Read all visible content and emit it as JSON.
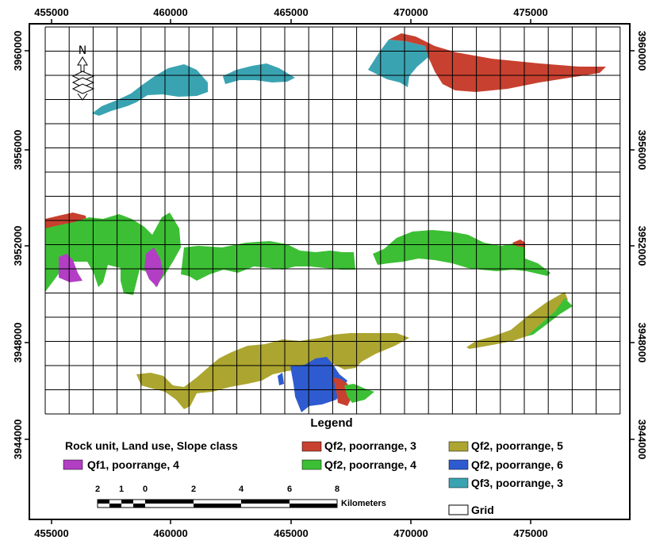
{
  "map": {
    "x_ticks": [
      "455000",
      "460000",
      "465000",
      "470000",
      "475000"
    ],
    "y_ticks": [
      "3960000",
      "3956000",
      "3952000",
      "3948000",
      "3944000"
    ],
    "north_label": "N"
  },
  "legend": {
    "title": "Legend",
    "header": "Rock unit, Land use, Slope class",
    "items": [
      {
        "label": "Qf2, poorrange, 3",
        "color": "#c8402f"
      },
      {
        "label": "Qf2, poorrange, 5",
        "color": "#aca530"
      },
      {
        "label": "Qf1, poorrange, 4",
        "color": "#b23ec4"
      },
      {
        "label": "Qf2, poorrange, 4",
        "color": "#3cbf34"
      },
      {
        "label": "Qf2, poorrange, 6",
        "color": "#2e5bd0"
      },
      {
        "label": "Qf3, poorrange, 3",
        "color": "#3aa3b2"
      },
      {
        "label": "Grid",
        "color": "#ffffff"
      }
    ]
  },
  "scalebar": {
    "labels": [
      "2",
      "1",
      "0",
      "2",
      "4",
      "6",
      "8"
    ],
    "unit": "Kilometers"
  }
}
